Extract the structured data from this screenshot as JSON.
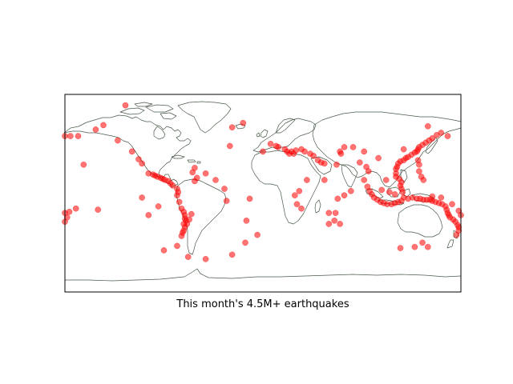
{
  "map": {
    "caption": "This month's 4.5M+ earthquakes",
    "projection": "equirectangular",
    "extent": {
      "lon": [
        -180,
        180
      ],
      "lat": [
        -90,
        90
      ]
    },
    "colors": {
      "marker": "#ff0000",
      "coastline": "#4a5a4a",
      "frame": "#000000",
      "background": "#ffffff"
    },
    "earthquakes": [
      {
        "lon": -180,
        "lat": 52
      },
      {
        "lon": -175,
        "lat": 52
      },
      {
        "lon": -168,
        "lat": 52
      },
      {
        "lon": -152,
        "lat": 58
      },
      {
        "lon": -145,
        "lat": 62
      },
      {
        "lon": -132,
        "lat": 48
      },
      {
        "lon": -119,
        "lat": 38
      },
      {
        "lon": -113,
        "lat": 31
      },
      {
        "lon": -110,
        "lat": 27
      },
      {
        "lon": -104,
        "lat": 18
      },
      {
        "lon": -100,
        "lat": 17
      },
      {
        "lon": -98,
        "lat": 16
      },
      {
        "lon": -96,
        "lat": 15
      },
      {
        "lon": -93,
        "lat": 14
      },
      {
        "lon": -91,
        "lat": 13
      },
      {
        "lon": -89,
        "lat": 12
      },
      {
        "lon": -86,
        "lat": 11
      },
      {
        "lon": -84,
        "lat": 9
      },
      {
        "lon": -82,
        "lat": 7
      },
      {
        "lon": -78,
        "lat": 4
      },
      {
        "lon": -77,
        "lat": 1
      },
      {
        "lon": -78,
        "lat": -2
      },
      {
        "lon": -76,
        "lat": -8
      },
      {
        "lon": -74,
        "lat": -14
      },
      {
        "lon": -72,
        "lat": -17
      },
      {
        "lon": -71,
        "lat": -20
      },
      {
        "lon": -71,
        "lat": -23
      },
      {
        "lon": -70,
        "lat": -25
      },
      {
        "lon": -72,
        "lat": -28
      },
      {
        "lon": -71,
        "lat": -31
      },
      {
        "lon": -72,
        "lat": -34
      },
      {
        "lon": -73,
        "lat": -36
      },
      {
        "lon": -74,
        "lat": -39
      },
      {
        "lon": -69,
        "lat": -28
      },
      {
        "lon": -67,
        "lat": -24
      },
      {
        "lon": -65,
        "lat": -19
      },
      {
        "lon": -62,
        "lat": 11
      },
      {
        "lon": -60,
        "lat": 14
      },
      {
        "lon": -64,
        "lat": 19
      },
      {
        "lon": -78,
        "lat": -48
      },
      {
        "lon": -68,
        "lat": -58
      },
      {
        "lon": -52,
        "lat": -60
      },
      {
        "lon": -28,
        "lat": -56
      },
      {
        "lon": -35,
        "lat": 4
      },
      {
        "lon": -30,
        "lat": 43
      },
      {
        "lon": -28,
        "lat": 60
      },
      {
        "lon": -18,
        "lat": 64
      },
      {
        "lon": -15,
        "lat": -25
      },
      {
        "lon": -12,
        "lat": -5
      },
      {
        "lon": 0,
        "lat": 38
      },
      {
        "lon": 7,
        "lat": 45
      },
      {
        "lon": 12,
        "lat": 43
      },
      {
        "lon": 14,
        "lat": 42
      },
      {
        "lon": 20,
        "lat": 40
      },
      {
        "lon": 22,
        "lat": 38
      },
      {
        "lon": 24,
        "lat": 36
      },
      {
        "lon": 26,
        "lat": 38
      },
      {
        "lon": 28,
        "lat": 36
      },
      {
        "lon": 30,
        "lat": 39
      },
      {
        "lon": 35,
        "lat": 40
      },
      {
        "lon": 38,
        "lat": 38
      },
      {
        "lon": 43,
        "lat": 36
      },
      {
        "lon": 46,
        "lat": 34
      },
      {
        "lon": 50,
        "lat": 30
      },
      {
        "lon": 53,
        "lat": 28
      },
      {
        "lon": 56,
        "lat": 27
      },
      {
        "lon": 33,
        "lat": 2
      },
      {
        "lon": 29,
        "lat": -2
      },
      {
        "lon": 35,
        "lat": -14
      },
      {
        "lon": 40,
        "lat": 12
      },
      {
        "lon": 56,
        "lat": 12
      },
      {
        "lon": 70,
        "lat": 38
      },
      {
        "lon": 71,
        "lat": 36
      },
      {
        "lon": 67,
        "lat": 26
      },
      {
        "lon": 74,
        "lat": 42
      },
      {
        "lon": 82,
        "lat": 42
      },
      {
        "lon": 92,
        "lat": 38
      },
      {
        "lon": 88,
        "lat": 28
      },
      {
        "lon": 94,
        "lat": 24
      },
      {
        "lon": 96,
        "lat": 20
      },
      {
        "lon": 92,
        "lat": 12
      },
      {
        "lon": 95,
        "lat": 6
      },
      {
        "lon": 97,
        "lat": 2
      },
      {
        "lon": 99,
        "lat": -1
      },
      {
        "lon": 101,
        "lat": -4
      },
      {
        "lon": 104,
        "lat": -6
      },
      {
        "lon": 107,
        "lat": -8
      },
      {
        "lon": 110,
        "lat": -9
      },
      {
        "lon": 113,
        "lat": -10
      },
      {
        "lon": 117,
        "lat": -10
      },
      {
        "lon": 120,
        "lat": -9
      },
      {
        "lon": 123,
        "lat": -8
      },
      {
        "lon": 126,
        "lat": -7
      },
      {
        "lon": 128,
        "lat": -4
      },
      {
        "lon": 127,
        "lat": 1
      },
      {
        "lon": 126,
        "lat": 4
      },
      {
        "lon": 125,
        "lat": 7
      },
      {
        "lon": 126,
        "lat": 10
      },
      {
        "lon": 124,
        "lat": 13
      },
      {
        "lon": 121,
        "lat": 15
      },
      {
        "lon": 121,
        "lat": 18
      },
      {
        "lon": 121,
        "lat": 22
      },
      {
        "lon": 122,
        "lat": 24
      },
      {
        "lon": 123,
        "lat": 27
      },
      {
        "lon": 125,
        "lat": 29
      },
      {
        "lon": 128,
        "lat": 30
      },
      {
        "lon": 130,
        "lat": 32
      },
      {
        "lon": 132,
        "lat": 33
      },
      {
        "lon": 135,
        "lat": 35
      },
      {
        "lon": 138,
        "lat": 37
      },
      {
        "lon": 140,
        "lat": 38
      },
      {
        "lon": 141,
        "lat": 40
      },
      {
        "lon": 142,
        "lat": 42
      },
      {
        "lon": 145,
        "lat": 44
      },
      {
        "lon": 148,
        "lat": 46
      },
      {
        "lon": 151,
        "lat": 48
      },
      {
        "lon": 154,
        "lat": 50
      },
      {
        "lon": 158,
        "lat": 53
      },
      {
        "lon": 162,
        "lat": 55
      },
      {
        "lon": 168,
        "lat": 52
      },
      {
        "lon": 141,
        "lat": 30
      },
      {
        "lon": 142,
        "lat": 26
      },
      {
        "lon": 142,
        "lat": 20
      },
      {
        "lon": 144,
        "lat": 15
      },
      {
        "lon": 146,
        "lat": 12
      },
      {
        "lon": 132,
        "lat": -5
      },
      {
        "lon": 136,
        "lat": -4
      },
      {
        "lon": 140,
        "lat": -5
      },
      {
        "lon": 143,
        "lat": -5
      },
      {
        "lon": 146,
        "lat": -6
      },
      {
        "lon": 149,
        "lat": -6
      },
      {
        "lon": 152,
        "lat": -6
      },
      {
        "lon": 154,
        "lat": -7
      },
      {
        "lon": 157,
        "lat": -8
      },
      {
        "lon": 160,
        "lat": -9
      },
      {
        "lon": 163,
        "lat": -10
      },
      {
        "lon": 166,
        "lat": -12
      },
      {
        "lon": 167,
        "lat": -15
      },
      {
        "lon": 168,
        "lat": -18
      },
      {
        "lon": 169,
        "lat": -20
      },
      {
        "lon": 170,
        "lat": -22
      },
      {
        "lon": 173,
        "lat": -24
      },
      {
        "lon": 175,
        "lat": -26
      },
      {
        "lon": 177,
        "lat": -29
      },
      {
        "lon": 178,
        "lat": -31
      },
      {
        "lon": 178,
        "lat": -34
      },
      {
        "lon": 176,
        "lat": -38
      },
      {
        "lon": 178,
        "lat": -16
      },
      {
        "lon": 180,
        "lat": -20
      },
      {
        "lon": 172,
        "lat": -10
      },
      {
        "lon": 162,
        "lat": -4
      },
      {
        "lon": 154,
        "lat": -3
      },
      {
        "lon": 120,
        "lat": -1
      },
      {
        "lon": 115,
        "lat": 1
      },
      {
        "lon": 108,
        "lat": 3
      },
      {
        "lon": 112,
        "lat": 12
      },
      {
        "lon": 128,
        "lat": 40
      },
      {
        "lon": 105,
        "lat": 32
      },
      {
        "lon": 145,
        "lat": -45
      },
      {
        "lon": 138,
        "lat": -49
      },
      {
        "lon": 150,
        "lat": -49
      },
      {
        "lon": 125,
        "lat": -50
      },
      {
        "lon": 60,
        "lat": -18
      },
      {
        "lon": 66,
        "lat": -18
      },
      {
        "lon": 65,
        "lat": -25
      },
      {
        "lon": 60,
        "lat": -28
      },
      {
        "lon": 70,
        "lat": -28
      },
      {
        "lon": 68,
        "lat": -5
      },
      {
        "lon": 74,
        "lat": -2
      },
      {
        "lon": 80,
        "lat": 2
      },
      {
        "lon": 31,
        "lat": -10
      },
      {
        "lon": -62,
        "lat": 23
      },
      {
        "lon": -52,
        "lat": 18
      },
      {
        "lon": -43,
        "lat": 12
      },
      {
        "lon": -33,
        "lat": -7
      },
      {
        "lon": -16,
        "lat": -45
      },
      {
        "lon": -5,
        "lat": -38
      },
      {
        "lon": -95,
        "lat": -12
      },
      {
        "lon": -110,
        "lat": -4
      },
      {
        "lon": -104,
        "lat": -20
      },
      {
        "lon": -90,
        "lat": -52
      },
      {
        "lon": -180,
        "lat": -18
      },
      {
        "lon": -178,
        "lat": -22
      },
      {
        "lon": -176,
        "lat": -17
      },
      {
        "lon": -180,
        "lat": -26
      },
      {
        "lon": -170,
        "lat": -14
      },
      {
        "lon": -150,
        "lat": -15
      },
      {
        "lon": -125,
        "lat": 80
      },
      {
        "lon": -163,
        "lat": 26
      },
      {
        "lon": 150,
        "lat": 61
      }
    ]
  }
}
